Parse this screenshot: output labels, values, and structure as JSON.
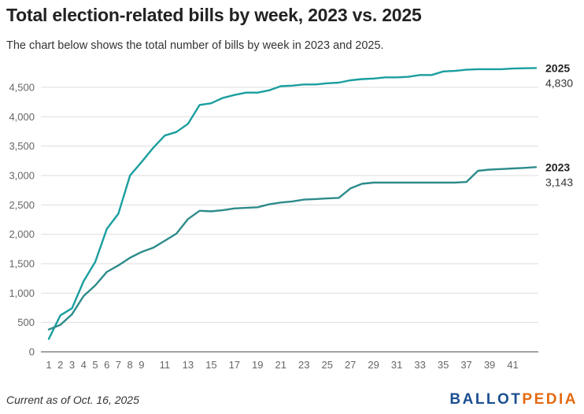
{
  "title": "Total election-related bills by week, 2023 vs. 2025",
  "subtitle": "The chart below shows the total number of bills by week in 2023 and 2025.",
  "footer": {
    "note": "Current as of Oct. 16, 2025",
    "brand_part1": "BALLOT",
    "brand_part2": "PEDIA"
  },
  "colors": {
    "series_2025": "#1a9e9e",
    "series_2023": "#2e8b8b",
    "brand_blue": "#1b4e8f",
    "brand_orange": "#e36a12"
  },
  "chart_data": {
    "type": "line",
    "title": "Total election-related bills by week, 2023 vs. 2025",
    "xlabel": "",
    "ylabel": "",
    "xlim": [
      1,
      43
    ],
    "ylim": [
      0,
      4800
    ],
    "y_ticks": [
      0,
      500,
      1000,
      1500,
      2000,
      2500,
      3000,
      3500,
      4000,
      4500
    ],
    "y_tick_labels": [
      "0",
      "500",
      "1,000",
      "1,500",
      "2,000",
      "2,500",
      "3,000",
      "3,500",
      "4,000",
      "4,500"
    ],
    "x_ticks": [
      1,
      2,
      3,
      4,
      5,
      6,
      7,
      8,
      9,
      11,
      13,
      15,
      17,
      19,
      21,
      23,
      25,
      27,
      29,
      31,
      33,
      35,
      37,
      39,
      41
    ],
    "grid": "horizontal",
    "legend": "end-of-line labels",
    "x": [
      1,
      2,
      3,
      4,
      5,
      6,
      7,
      8,
      9,
      10,
      11,
      12,
      13,
      14,
      15,
      16,
      17,
      18,
      19,
      20,
      21,
      22,
      23,
      24,
      25,
      26,
      27,
      28,
      29,
      30,
      31,
      32,
      33,
      34,
      35,
      36,
      37,
      38,
      39,
      40,
      41,
      42,
      43
    ],
    "series": [
      {
        "name": "2025",
        "end_label": "4,830",
        "values": [
          220,
          620,
          740,
          1200,
          1530,
          2090,
          2350,
          3000,
          3230,
          3470,
          3680,
          3740,
          3880,
          4200,
          4230,
          4320,
          4370,
          4410,
          4410,
          4450,
          4520,
          4530,
          4550,
          4550,
          4570,
          4580,
          4620,
          4640,
          4650,
          4670,
          4670,
          4680,
          4710,
          4710,
          4770,
          4780,
          4800,
          4810,
          4810,
          4810,
          4820,
          4825,
          4830
        ]
      },
      {
        "name": "2023",
        "end_label": "3,143",
        "values": [
          380,
          460,
          640,
          950,
          1130,
          1360,
          1470,
          1600,
          1700,
          1770,
          1890,
          2010,
          2260,
          2400,
          2390,
          2410,
          2440,
          2450,
          2460,
          2510,
          2540,
          2560,
          2590,
          2600,
          2610,
          2620,
          2780,
          2860,
          2880,
          2880,
          2880,
          2880,
          2880,
          2880,
          2880,
          2880,
          2890,
          3080,
          3100,
          3110,
          3120,
          3130,
          3143
        ]
      }
    ]
  }
}
